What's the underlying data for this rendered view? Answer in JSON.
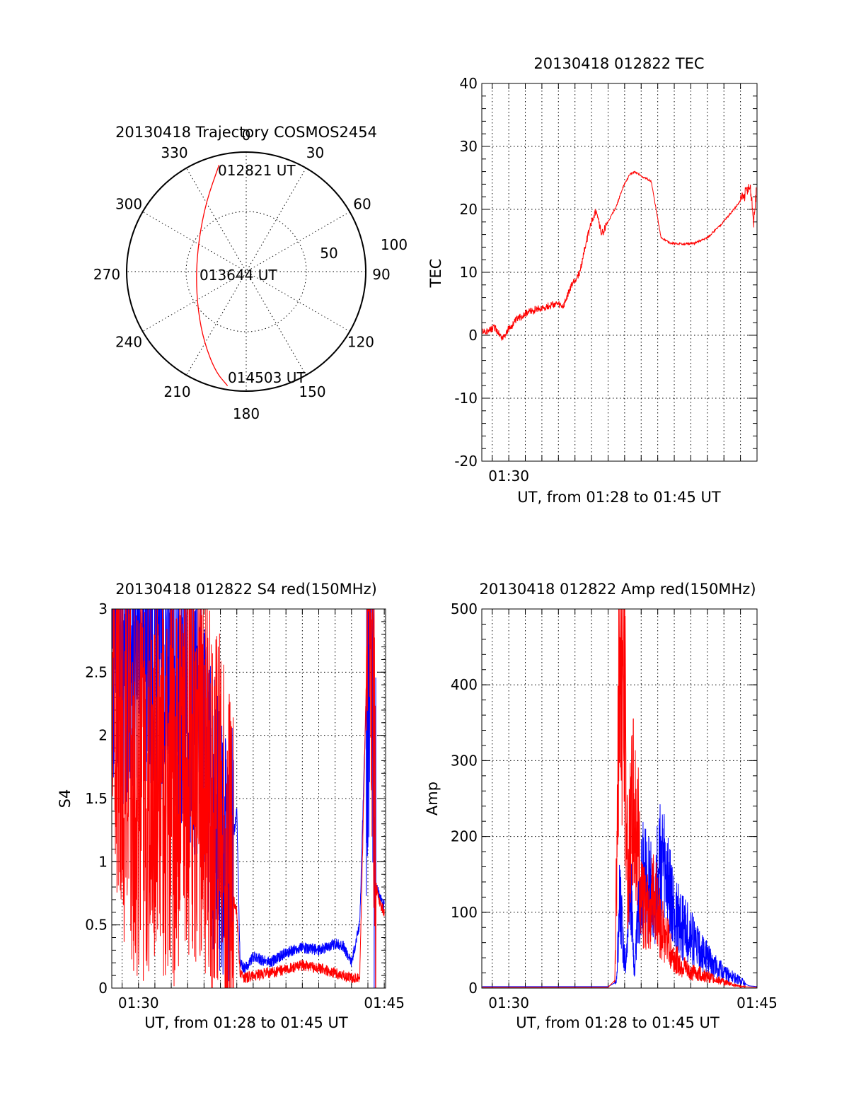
{
  "colors": {
    "red": "#ff0000",
    "blue": "#0000ff",
    "axis": "#000000"
  },
  "polar": {
    "title": "20130418 Trajectory COSMOS2454",
    "azimuth_labels": [
      "0",
      "30",
      "60",
      "90",
      "120",
      "150",
      "180",
      "210",
      "240",
      "270",
      "300",
      "330"
    ],
    "elevation_labels": [
      "50",
      "100"
    ],
    "track_labels": {
      "start": "012821 UT",
      "mid": "013644 UT",
      "end": "014503 UT"
    }
  },
  "chart_data": [
    {
      "type": "line",
      "panel": "polar-trajectory",
      "title": "20130418 Trajectory COSMOS2454",
      "azimuth_deg": [
        0,
        30,
        60,
        90,
        120,
        150,
        180,
        210,
        240,
        270,
        300,
        330
      ],
      "radius_rings": [
        50,
        100
      ],
      "series": [
        {
          "color": "#ff0000",
          "x": [
            -0.227,
            -0.335,
            -0.398,
            -0.42,
            -0.403,
            -0.352,
            -0.258,
            -0.156
          ],
          "y": [
            0.892,
            0.585,
            0.26,
            -0.04,
            -0.33,
            -0.59,
            -0.835,
            -0.955
          ]
        }
      ]
    },
    {
      "type": "line",
      "panel": "tec",
      "title": "20130418 012822 TEC",
      "ylabel": "TEC",
      "xlabel": "UT, from 01:28 to 01:45 UT",
      "xlim": [
        88.37,
        105
      ],
      "ylim": [
        -20,
        40
      ],
      "yticks": [
        "-20",
        "-10",
        "0",
        "10",
        "20",
        "30",
        "40"
      ],
      "xtick_labels": [
        {
          "x": 90,
          "label": "01:30"
        }
      ],
      "series": [
        {
          "color": "#ff0000",
          "x": [
            88.4,
            88.8,
            89.2,
            89.6,
            90.0,
            90.5,
            91.0,
            91.6,
            92.2,
            92.8,
            93.3,
            93.8,
            94.3,
            94.6,
            95.0,
            95.3,
            95.6,
            96.0,
            96.5,
            96.9,
            97.3,
            97.6,
            98.2,
            98.6,
            99.2,
            99.8,
            100.5,
            101.2,
            102.0,
            102.8,
            103.6,
            104.2,
            104.4,
            104.6,
            104.8,
            104.95
          ],
          "y": [
            0.5,
            0.8,
            1.2,
            -0.5,
            1.0,
            2.5,
            3.5,
            4.0,
            4.5,
            5.0,
            4.5,
            8.0,
            10.0,
            14.0,
            18.0,
            20.0,
            16.0,
            18.0,
            20.5,
            23.5,
            25.5,
            26.0,
            25.0,
            24.5,
            15.5,
            14.6,
            14.5,
            14.6,
            15.5,
            17.5,
            20.0,
            22.0,
            23.0,
            23.5,
            18.0,
            22.5
          ]
        }
      ]
    },
    {
      "type": "line",
      "panel": "s4",
      "title": "20130418 012822 S4 red(150MHz)",
      "ylabel": "S4",
      "xlabel": "UT, from 01:28 to 01:45 UT",
      "xlim": [
        88.37,
        105.08
      ],
      "ylim": [
        0,
        3
      ],
      "yticks": [
        "0",
        "0.5",
        "1",
        "1.5",
        "2",
        "2.5",
        "3"
      ],
      "xtick_labels": [
        {
          "x": 90,
          "label": "01:30"
        },
        {
          "x": 105,
          "label": "01:45"
        }
      ],
      "series": [
        {
          "color": "#0000ff",
          "x": [
            88.4,
            89.0,
            90.0,
            91.0,
            92.0,
            93.0,
            93.6,
            94.0,
            94.5,
            95.0,
            95.3,
            95.6,
            95.8,
            96.0,
            96.2,
            96.5,
            97.0,
            98.0,
            99.0,
            100.0,
            101.0,
            102.0,
            102.5,
            103.0,
            103.5,
            104.0,
            104.2,
            104.5,
            104.8,
            105.0
          ],
          "y": [
            2.8,
            2.5,
            2.7,
            2.6,
            2.5,
            2.3,
            2.1,
            1.9,
            1.4,
            1.2,
            1.0,
            0.85,
            1.2,
            1.4,
            0.2,
            0.15,
            0.25,
            0.2,
            0.28,
            0.32,
            0.3,
            0.35,
            0.33,
            0.2,
            0.5,
            2.8,
            2.9,
            0.8,
            0.7,
            0.65
          ]
        },
        {
          "color": "#ff0000",
          "x": [
            88.4,
            89.0,
            90.0,
            91.0,
            92.0,
            93.0,
            93.6,
            94.0,
            94.5,
            95.0,
            95.3,
            95.6,
            95.8,
            96.0,
            96.2,
            96.5,
            97.0,
            98.0,
            99.0,
            100.0,
            101.0,
            102.0,
            102.5,
            103.0,
            103.5,
            104.0,
            104.2,
            104.5,
            104.8,
            105.0
          ],
          "y": [
            2.6,
            2.0,
            1.6,
            1.7,
            1.5,
            1.8,
            1.8,
            1.7,
            1.4,
            1.3,
            1.0,
            0.8,
            0.7,
            0.6,
            0.12,
            0.08,
            0.1,
            0.12,
            0.15,
            0.18,
            0.16,
            0.12,
            0.1,
            0.08,
            0.07,
            3.0,
            2.9,
            0.8,
            0.65,
            0.6
          ]
        }
      ]
    },
    {
      "type": "line",
      "panel": "amp",
      "title": "20130418 012822 Amp red(150MHz)",
      "ylabel": "Amp",
      "xlabel": "UT, from 01:28 to 01:45 UT",
      "xlim": [
        88.37,
        105
      ],
      "ylim": [
        0,
        500
      ],
      "yticks": [
        "0",
        "100",
        "200",
        "300",
        "400",
        "500"
      ],
      "xtick_labels": [
        {
          "x": 90,
          "label": "01:30"
        },
        {
          "x": 105,
          "label": "01:45"
        }
      ],
      "series": [
        {
          "color": "#0000ff",
          "x": [
            88.4,
            90.0,
            92.0,
            94.0,
            96.0,
            96.5,
            96.7,
            96.9,
            97.1,
            97.3,
            97.6,
            98.0,
            98.4,
            98.8,
            99.2,
            99.6,
            100.0,
            100.5,
            101.0,
            101.5,
            102.0,
            102.5,
            103.0,
            103.5,
            104.0,
            104.5,
            105.0
          ],
          "y": [
            2,
            2,
            2,
            2,
            2,
            8,
            120,
            60,
            30,
            160,
            20,
            150,
            130,
            120,
            170,
            130,
            100,
            80,
            70,
            50,
            40,
            30,
            20,
            15,
            10,
            3,
            2
          ]
        },
        {
          "color": "#ff0000",
          "x": [
            88.4,
            90.0,
            92.0,
            94.0,
            96.0,
            96.4,
            96.6,
            96.8,
            97.0,
            97.2,
            97.5,
            97.8,
            98.0,
            98.4,
            98.8,
            99.2,
            99.6,
            100.0,
            100.5,
            101.0,
            101.5,
            102.0,
            102.5,
            103.0,
            103.5,
            104.0,
            105.0
          ],
          "y": [
            1,
            1,
            1,
            1,
            1,
            10,
            300,
            480,
            350,
            150,
            250,
            200,
            110,
            100,
            120,
            80,
            60,
            40,
            30,
            20,
            20,
            15,
            12,
            8,
            5,
            2,
            1
          ]
        }
      ]
    }
  ],
  "tec": {
    "title": "20130418 012822 TEC",
    "ylabel": "TEC",
    "xlabel": "UT, from 01:28 to 01:45 UT"
  },
  "s4": {
    "title": "20130418 012822 S4 red(150MHz)",
    "ylabel": "S4",
    "xlabel": "UT, from 01:28 to 01:45 UT"
  },
  "amp": {
    "title": "20130418 012822 Amp red(150MHz)",
    "ylabel": "Amp",
    "xlabel": "UT, from 01:28 to 01:45 UT"
  }
}
